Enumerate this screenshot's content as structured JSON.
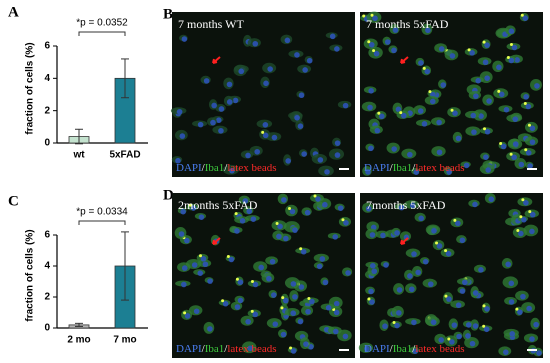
{
  "chart_data": [
    {
      "type": "bar",
      "panel": "A",
      "annotation": "*p = 0.0352",
      "ylabel": "fraction of cells (%)",
      "categories": [
        "wt",
        "5xFAD"
      ],
      "values": [
        0.4,
        4.0
      ],
      "errors": [
        0.45,
        1.2
      ],
      "colors": [
        "#c4e3cf",
        "#1c7f93"
      ],
      "ylim": [
        0,
        6
      ],
      "yticks": [
        0,
        2,
        4,
        6
      ]
    },
    {
      "type": "bar",
      "panel": "C",
      "annotation": "*p = 0.0334",
      "ylabel": "fraction of cells (%)",
      "categories": [
        "2 mo",
        "7 mo"
      ],
      "values": [
        0.2,
        4.0
      ],
      "errors": [
        0.1,
        2.2
      ],
      "colors": [
        "#b4b4b4",
        "#1c7f93"
      ],
      "ylim": [
        0,
        6
      ],
      "yticks": [
        0,
        2,
        4,
        6
      ]
    }
  ],
  "images": [
    {
      "panel": "B",
      "title": "7 months WT",
      "legend": [
        "DAPI",
        "/",
        "Iba1",
        "/",
        "latex beads"
      ]
    },
    {
      "title": "7 months 5xFAD",
      "legend": [
        "DAPI",
        "/",
        "Iba1",
        "/",
        "latex beads"
      ]
    },
    {
      "panel": "D",
      "title": "2months 5xFAD",
      "legend": [
        "DAPI",
        "/",
        "Iba1",
        "/",
        "latex beads"
      ]
    },
    {
      "title": "7months 5xFAD",
      "legend": [
        "DAPI",
        "/",
        "Iba1",
        "/",
        "latex beads"
      ]
    }
  ]
}
